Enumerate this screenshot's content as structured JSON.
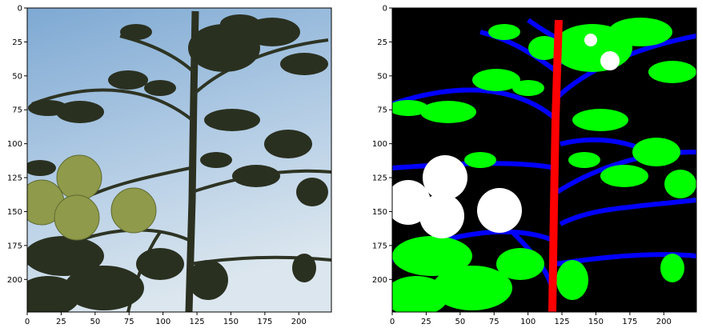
{
  "figure": {
    "panels": [
      {
        "name": "photo",
        "description_key": "rgb-photo",
        "xticks": [
          "0",
          "25",
          "50",
          "75",
          "100",
          "125",
          "150",
          "175",
          "200"
        ],
        "yticks": [
          "0",
          "25",
          "50",
          "75",
          "100",
          "125",
          "150",
          "175",
          "200"
        ]
      },
      {
        "name": "segmentation",
        "description_key": "segmentation-mask",
        "xticks": [
          "0",
          "25",
          "50",
          "75",
          "100",
          "125",
          "150",
          "175",
          "200"
        ],
        "yticks": [
          "0",
          "25",
          "50",
          "75",
          "100",
          "125",
          "150",
          "175",
          "200"
        ]
      }
    ],
    "axis_range": [
      0,
      224
    ],
    "tick_values": [
      0,
      25,
      50,
      75,
      100,
      125,
      150,
      175,
      200
    ],
    "colors": {
      "sky_top": "#8fb6da",
      "sky_bottom": "#cfe0ee",
      "silhouette": "#2b3020",
      "fruit_photo": "#8f9a4a",
      "mask_bg": "#000000",
      "mask_leaf": "#00ff00",
      "mask_branch": "#0000ff",
      "mask_stem": "#ff0000",
      "mask_fruit": "#ffffff"
    }
  }
}
